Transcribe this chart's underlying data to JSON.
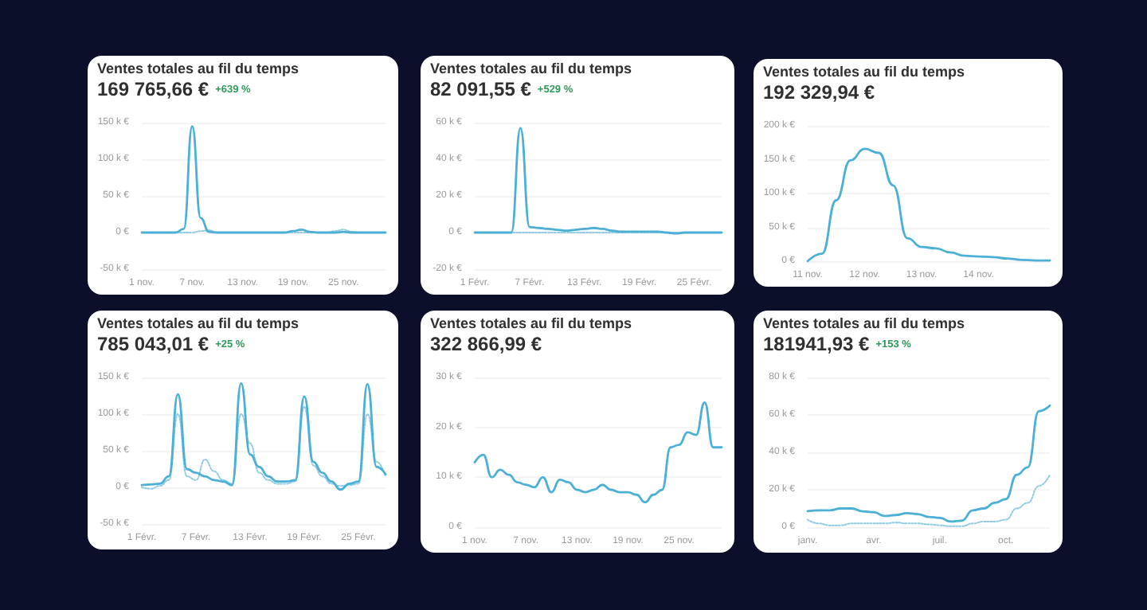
{
  "chart_data": [
    {
      "type": "line",
      "title": "Ventes totales au fil du temps",
      "subtitle": "169 765,66 €",
      "annotations": [
        "+639 %"
      ],
      "categories": [
        "1 nov.",
        null,
        null,
        null,
        null,
        null,
        "7 nov.",
        null,
        null,
        null,
        null,
        null,
        "13 nov.",
        null,
        null,
        null,
        null,
        null,
        "19 nov.",
        null,
        null,
        null,
        null,
        null,
        "25 nov.",
        null,
        null,
        null,
        null,
        null
      ],
      "series": [
        {
          "color": "#4bafd6",
          "line_style": "solid",
          "values": [
            0,
            0,
            0,
            0,
            0,
            5000,
            145000,
            20000,
            1000,
            0,
            0,
            0,
            0,
            0,
            0,
            0,
            0,
            0,
            2000,
            4000,
            1000,
            0,
            0,
            0,
            1000,
            0,
            0,
            0,
            0,
            0
          ]
        },
        {
          "color": "#8fcbe3",
          "line_style": "dotted",
          "values": [
            0,
            0,
            0,
            0,
            0,
            0,
            0,
            2000,
            3000,
            0,
            0,
            0,
            0,
            0,
            0,
            0,
            0,
            0,
            0,
            0,
            0,
            0,
            0,
            2000,
            4000,
            1000,
            0,
            0,
            0,
            0
          ]
        }
      ],
      "ylim": [
        -50000,
        150000
      ],
      "yticks": [
        {
          "value": -50000,
          "label": "-50 k €"
        },
        {
          "value": 0,
          "label": "0 €"
        },
        {
          "value": 50000,
          "label": "50 k €"
        },
        {
          "value": 100000,
          "label": "100 k €"
        },
        {
          "value": 150000,
          "label": "150 k €"
        }
      ],
      "grid": "y",
      "marker": "none"
    },
    {
      "type": "line",
      "title": "Ventes totales au fil du temps",
      "subtitle": "82 091,55 €",
      "annotations": [
        "+529 %"
      ],
      "categories": [
        "1 Févr.",
        null,
        null,
        null,
        null,
        null,
        "7 Févr.",
        null,
        null,
        null,
        null,
        null,
        "13 Févr.",
        null,
        null,
        null,
        null,
        null,
        "19 Févr.",
        null,
        null,
        null,
        null,
        null,
        "25 Févr.",
        null,
        null,
        null
      ],
      "series": [
        {
          "color": "#4bafd6",
          "line_style": "solid",
          "values": [
            0,
            0,
            0,
            0,
            0,
            57000,
            3000,
            2500,
            2000,
            1500,
            1000,
            1500,
            2000,
            2500,
            2000,
            1000,
            500,
            500,
            500,
            500,
            500,
            0,
            -500,
            0,
            0,
            0,
            0,
            0
          ]
        },
        {
          "color": "#8fcbe3",
          "line_style": "dotted",
          "values": [
            0,
            0,
            0,
            0,
            0,
            0,
            0,
            0,
            0,
            0,
            0,
            0,
            0,
            0,
            0,
            0,
            0,
            0,
            0,
            0,
            0,
            0,
            0,
            0,
            0,
            0,
            0,
            0
          ]
        }
      ],
      "ylim": [
        -20000,
        60000
      ],
      "yticks": [
        {
          "value": -20000,
          "label": "-20 k €"
        },
        {
          "value": 0,
          "label": "0 €"
        },
        {
          "value": 20000,
          "label": "20 k €"
        },
        {
          "value": 40000,
          "label": "40 k €"
        },
        {
          "value": 60000,
          "label": "60 k €"
        }
      ],
      "grid": "y",
      "marker": "none"
    },
    {
      "type": "line",
      "title": "Ventes totales au fil du temps",
      "subtitle": "192 329,94 €",
      "categories": [
        "11 nov.",
        null,
        null,
        null,
        "12 nov.",
        null,
        null,
        null,
        "13 nov.",
        null,
        null,
        null,
        "14 nov.",
        null,
        null,
        null,
        null,
        null
      ],
      "series": [
        {
          "color": "#4bafd6",
          "line_style": "solid",
          "values": [
            0,
            11000,
            90000,
            149000,
            166000,
            160000,
            112000,
            34000,
            21000,
            19000,
            13000,
            8000,
            7000,
            6000,
            4000,
            2000,
            1000,
            1000
          ]
        }
      ],
      "ylim": [
        0,
        200000
      ],
      "yticks": [
        {
          "value": 0,
          "label": "0 €"
        },
        {
          "value": 50000,
          "label": "50 k €"
        },
        {
          "value": 100000,
          "label": "100 k €"
        },
        {
          "value": 150000,
          "label": "150 k €"
        },
        {
          "value": 200000,
          "label": "200 k €"
        }
      ],
      "grid": "y",
      "marker": "none"
    },
    {
      "type": "line",
      "title": "Ventes totales au fil du temps",
      "subtitle": "785 043,01 €",
      "annotations": [
        "+25 %"
      ],
      "categories": [
        "1 Févr.",
        null,
        null,
        null,
        null,
        null,
        "7 Févr.",
        null,
        null,
        null,
        null,
        null,
        "13 Févr.",
        null,
        null,
        null,
        null,
        null,
        "19 Févr.",
        null,
        null,
        null,
        null,
        null,
        "25 Févr.",
        null,
        null,
        null
      ],
      "series": [
        {
          "color": "#4bafd6",
          "line_style": "solid",
          "values": [
            3000,
            4000,
            5000,
            15000,
            127000,
            25000,
            20000,
            15000,
            10000,
            8000,
            3000,
            142000,
            45000,
            28000,
            15000,
            8000,
            8000,
            10000,
            124000,
            35000,
            20000,
            8000,
            -3000,
            5000,
            8000,
            141000,
            28000,
            18000
          ]
        },
        {
          "color": "#8fcbe3",
          "line_style": "dotted",
          "values": [
            0,
            -2000,
            2000,
            10000,
            100000,
            15000,
            10000,
            38000,
            22000,
            10000,
            5000,
            100000,
            60000,
            20000,
            10000,
            5000,
            5000,
            8000,
            110000,
            30000,
            15000,
            5000,
            2000,
            3000,
            5000,
            100000,
            35000,
            15000
          ]
        }
      ],
      "ylim": [
        -50000,
        150000
      ],
      "yticks": [
        {
          "value": -50000,
          "label": "-50 k €"
        },
        {
          "value": 0,
          "label": "0 €"
        },
        {
          "value": 50000,
          "label": "50 k €"
        },
        {
          "value": 100000,
          "label": "100 k €"
        },
        {
          "value": 150000,
          "label": "150 k €"
        }
      ],
      "grid": "y",
      "marker": "none"
    },
    {
      "type": "line",
      "title": "Ventes totales au fil du temps",
      "subtitle": "322 866,99 €",
      "categories": [
        "1 nov.",
        null,
        null,
        null,
        null,
        null,
        "7 nov.",
        null,
        null,
        null,
        null,
        null,
        "13 nov.",
        null,
        null,
        null,
        null,
        null,
        "19 nov.",
        null,
        null,
        null,
        null,
        null,
        "25 nov.",
        null,
        null,
        null,
        null,
        null
      ],
      "series": [
        {
          "color": "#4bafd6",
          "line_style": "solid",
          "values": [
            13000,
            14500,
            10000,
            11500,
            10500,
            9000,
            8500,
            8000,
            10000,
            7000,
            9500,
            9000,
            7500,
            7000,
            7500,
            8500,
            7500,
            7000,
            7000,
            6500,
            5000,
            6500,
            7500,
            16000,
            16500,
            19000,
            18500,
            25000,
            16000,
            16000
          ]
        }
      ],
      "ylim": [
        0,
        30000
      ],
      "yticks": [
        {
          "value": 0,
          "label": "0 €"
        },
        {
          "value": 10000,
          "label": "10 k €"
        },
        {
          "value": 20000,
          "label": "20 k €"
        },
        {
          "value": 30000,
          "label": "30 k €"
        }
      ],
      "grid": "y",
      "marker": "none"
    },
    {
      "type": "line",
      "title": "Ventes totales au fil du temps",
      "subtitle": "181941,93 €",
      "annotations": [
        "+153 %"
      ],
      "categories": [
        "janv.",
        null,
        null,
        null,
        null,
        null,
        "avr.",
        null,
        null,
        null,
        null,
        null,
        "juil.",
        null,
        null,
        null,
        null,
        null,
        "oct.",
        null,
        null,
        null,
        null
      ],
      "series": [
        {
          "color": "#4bafd6",
          "line_style": "solid",
          "values": [
            8600,
            9000,
            9000,
            10000,
            10000,
            8500,
            8000,
            6000,
            6500,
            7500,
            7000,
            5500,
            5000,
            3000,
            3500,
            9000,
            10000,
            13000,
            15000,
            28000,
            32000,
            62000,
            65000
          ]
        },
        {
          "color": "#8fcbe3",
          "line_style": "dotted",
          "values": [
            4000,
            2000,
            1000,
            1000,
            2000,
            2000,
            2000,
            2000,
            2500,
            2000,
            2000,
            1500,
            1000,
            500,
            500,
            2000,
            3000,
            3000,
            4000,
            10000,
            13000,
            22000,
            28000
          ]
        }
      ],
      "ylim": [
        0,
        80000
      ],
      "yticks": [
        {
          "value": 0,
          "label": "0 €"
        },
        {
          "value": 20000,
          "label": "20 k €"
        },
        {
          "value": 40000,
          "label": "40 k €"
        },
        {
          "value": 60000,
          "label": "60 k €"
        },
        {
          "value": 80000,
          "label": "80 k €"
        }
      ],
      "grid": "y",
      "marker": "none"
    }
  ]
}
